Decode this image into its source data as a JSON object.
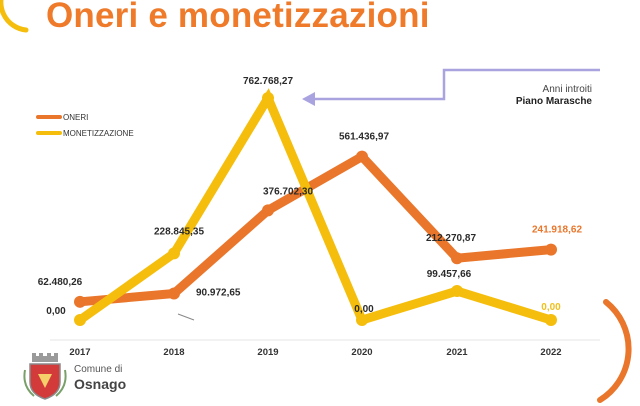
{
  "slide": {
    "title": "Oneri e monetizzazioni",
    "logo_line1": "Comune di",
    "logo_line2": "Osnago"
  },
  "colors": {
    "title": "#ee7a2a",
    "oneri": "#e9762b",
    "monetizzazione": "#f5be0d",
    "annotation_arrow": "#a9a3e0",
    "oneri_last_label": "#e9762b",
    "monet_last_label": "#f0c020"
  },
  "chart_data": {
    "type": "line",
    "categories": [
      "2017",
      "2018",
      "2019",
      "2020",
      "2021",
      "2022"
    ],
    "series": [
      {
        "name": "ONERI",
        "values": [
          62480.26,
          90972.65,
          376702.3,
          561436.97,
          212270.87,
          241918.62
        ],
        "labels": [
          "62.480,26",
          "90.972,65",
          "376.702,30",
          "561.436,97",
          "212.270,87",
          "241.918,62"
        ]
      },
      {
        "name": "MONETIZZAZIONE",
        "values": [
          0.0,
          228845.35,
          762768.27,
          0.0,
          99457.66,
          0.0
        ],
        "labels": [
          "0,00",
          "228.845,35",
          "762.768,27",
          "0,00",
          "99.457,66",
          "0,00"
        ]
      }
    ],
    "annotation": {
      "line1": "Anni introiti",
      "line2": "Piano Marasche"
    },
    "legend_position": "top-left",
    "grid": false
  }
}
